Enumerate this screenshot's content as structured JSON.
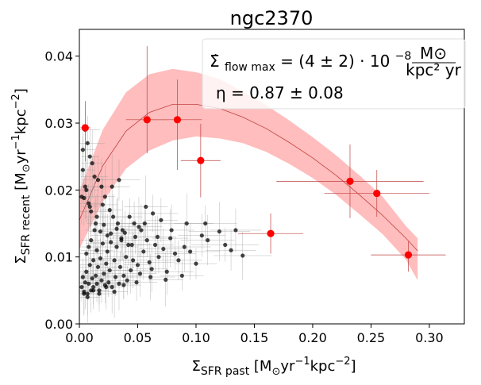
{
  "chart_data": {
    "type": "scatter",
    "title": "ngc2370",
    "xlabel": {
      "main": "Σ",
      "sub": "SFR past",
      "unit_open": "  [M",
      "unit_sub": "⊙",
      "unit_rest": "yr",
      "sup1": "−1",
      "kpc": "kpc",
      "sup2": "−2",
      "close": "]"
    },
    "ylabel": {
      "main": "Σ",
      "sub": "SFR recent",
      "unit_open": "  [M",
      "unit_sub": "⊙",
      "unit_rest": "yr",
      "sup1": "−1",
      "kpc": "kpc",
      "sup2": "−2",
      "close": "]"
    },
    "xlim": [
      0.0,
      0.33
    ],
    "ylim": [
      0.0,
      0.044
    ],
    "xticks": [
      "0.00",
      "0.05",
      "0.10",
      "0.15",
      "0.20",
      "0.25",
      "0.30"
    ],
    "xtick_values": [
      0.0,
      0.05,
      0.1,
      0.15,
      0.2,
      0.25,
      0.3
    ],
    "yticks": [
      "0.00",
      "0.01",
      "0.02",
      "0.03",
      "0.04"
    ],
    "ytick_values": [
      0.0,
      0.01,
      0.02,
      0.03,
      0.04
    ],
    "grid": false,
    "annotations": {
      "line1": {
        "lhs": "Σ̇",
        "lhs_sub": "flow max",
        "eq": " = (4 ± 2) · 10",
        "exp": "−8",
        "frac_num": "M⊙",
        "frac_den": "kpc² yr"
      },
      "line2": "η = 0.87 ± 0.08"
    },
    "colors": {
      "band": "#ff9999",
      "model_line": "#c04040",
      "highlight": "#ff0000",
      "points": "#000000",
      "errbar_black": "#999999",
      "errbar_red": "#c04040"
    },
    "model_curve": {
      "x": [
        0.0,
        0.02,
        0.04,
        0.06,
        0.08,
        0.1,
        0.12,
        0.14,
        0.16,
        0.18,
        0.2,
        0.22,
        0.24,
        0.26,
        0.28,
        0.29
      ],
      "y": [
        0.0155,
        0.0236,
        0.0288,
        0.0316,
        0.0328,
        0.0328,
        0.0322,
        0.0309,
        0.0292,
        0.0271,
        0.0248,
        0.0222,
        0.0193,
        0.0162,
        0.0128,
        0.0109
      ],
      "upper": [
        0.0198,
        0.029,
        0.0346,
        0.0373,
        0.0381,
        0.0376,
        0.0366,
        0.0347,
        0.0327,
        0.0304,
        0.0279,
        0.0252,
        0.0222,
        0.019,
        0.0146,
        0.0128
      ],
      "lower": [
        0.0112,
        0.0182,
        0.0232,
        0.0259,
        0.0274,
        0.028,
        0.0277,
        0.027,
        0.0257,
        0.0239,
        0.0218,
        0.0193,
        0.0164,
        0.0134,
        0.0096,
        0.0065
      ]
    },
    "highlight_points": [
      {
        "x": 0.005,
        "y": 0.0293,
        "xerr": 0.004,
        "yerr_lo": 0.005,
        "yerr_hi": 0.004
      },
      {
        "x": 0.058,
        "y": 0.0305,
        "xerr": 0.018,
        "yerr_lo": 0.005,
        "yerr_hi": 0.011
      },
      {
        "x": 0.084,
        "y": 0.0305,
        "xerr": 0.021,
        "yerr_lo": 0.0075,
        "yerr_hi": 0.006
      },
      {
        "x": 0.104,
        "y": 0.0244,
        "xerr": 0.017,
        "yerr_lo": 0.0055,
        "yerr_hi": 0.0055
      },
      {
        "x": 0.164,
        "y": 0.0135,
        "xerr": 0.028,
        "yerr_lo": 0.003,
        "yerr_hi": 0.003
      },
      {
        "x": 0.232,
        "y": 0.0213,
        "xerr": 0.063,
        "yerr_lo": 0.0055,
        "yerr_hi": 0.0055
      },
      {
        "x": 0.255,
        "y": 0.0195,
        "xerr": 0.045,
        "yerr_lo": 0.0035,
        "yerr_hi": 0.0035
      },
      {
        "x": 0.282,
        "y": 0.0103,
        "xerr": 0.032,
        "yerr_lo": 0.0025,
        "yerr_hi": 0.002
      }
    ],
    "points": {
      "x": [
        0.002,
        0.003,
        0.004,
        0.005,
        0.006,
        0.006,
        0.007,
        0.008,
        0.008,
        0.009,
        0.01,
        0.01,
        0.011,
        0.012,
        0.012,
        0.013,
        0.014,
        0.015,
        0.015,
        0.016,
        0.017,
        0.018,
        0.019,
        0.02,
        0.021,
        0.022,
        0.023,
        0.024,
        0.025,
        0.026,
        0.027,
        0.028,
        0.03,
        0.031,
        0.032,
        0.034,
        0.035,
        0.036,
        0.038,
        0.04,
        0.041,
        0.042,
        0.044,
        0.046,
        0.048,
        0.05,
        0.052,
        0.055,
        0.058,
        0.06,
        0.062,
        0.065,
        0.068,
        0.072,
        0.075,
        0.078,
        0.082,
        0.085,
        0.09,
        0.095,
        0.1,
        0.105,
        0.11,
        0.12,
        0.125,
        0.13,
        0.14,
        0.003,
        0.005,
        0.007,
        0.009,
        0.011,
        0.013,
        0.016,
        0.019,
        0.022,
        0.026,
        0.029,
        0.033,
        0.037,
        0.043,
        0.047,
        0.053,
        0.057,
        0.063,
        0.07,
        0.004,
        0.006,
        0.008,
        0.01,
        0.014,
        0.018,
        0.021,
        0.024,
        0.027,
        0.032,
        0.036,
        0.039,
        0.045,
        0.051,
        0.056,
        0.067,
        0.079,
        0.092,
        0.108,
        0.134,
        0.004,
        0.007,
        0.012,
        0.017,
        0.023,
        0.03,
        0.038,
        0.049,
        0.061,
        0.074,
        0.088,
        0.003,
        0.002,
        0.005,
        0.009,
        0.015,
        0.02,
        0.028,
        0.034
      ],
      "y": [
        0.0055,
        0.007,
        0.0048,
        0.0062,
        0.0105,
        0.0078,
        0.0045,
        0.0115,
        0.006,
        0.0088,
        0.005,
        0.0125,
        0.0068,
        0.0095,
        0.0055,
        0.014,
        0.0072,
        0.006,
        0.011,
        0.0085,
        0.005,
        0.0098,
        0.0065,
        0.012,
        0.0075,
        0.0058,
        0.009,
        0.0108,
        0.0062,
        0.008,
        0.0135,
        0.0055,
        0.0095,
        0.007,
        0.0115,
        0.006,
        0.0085,
        0.0125,
        0.0072,
        0.01,
        0.0065,
        0.0118,
        0.008,
        0.0095,
        0.013,
        0.0088,
        0.0075,
        0.0108,
        0.0125,
        0.0092,
        0.0082,
        0.0118,
        0.01,
        0.0112,
        0.0078,
        0.0128,
        0.0105,
        0.0095,
        0.0115,
        0.0108,
        0.009,
        0.0132,
        0.0125,
        0.0138,
        0.0118,
        0.011,
        0.0102,
        0.023,
        0.029,
        0.027,
        0.025,
        0.024,
        0.022,
        0.0215,
        0.0205,
        0.019,
        0.017,
        0.016,
        0.015,
        0.014,
        0.016,
        0.015,
        0.014,
        0.0175,
        0.0165,
        0.0155,
        0.0188,
        0.02,
        0.018,
        0.0168,
        0.015,
        0.0138,
        0.0148,
        0.0132,
        0.0122,
        0.0142,
        0.0128,
        0.0136,
        0.0118,
        0.0145,
        0.015,
        0.013,
        0.014,
        0.015,
        0.015,
        0.014,
        0.0045,
        0.004,
        0.005,
        0.0045,
        0.0055,
        0.0048,
        0.0058,
        0.0062,
        0.007,
        0.0066,
        0.0072,
        0.026,
        0.019,
        0.0205,
        0.0175,
        0.016,
        0.0178,
        0.0205,
        0.0215
      ]
    }
  }
}
